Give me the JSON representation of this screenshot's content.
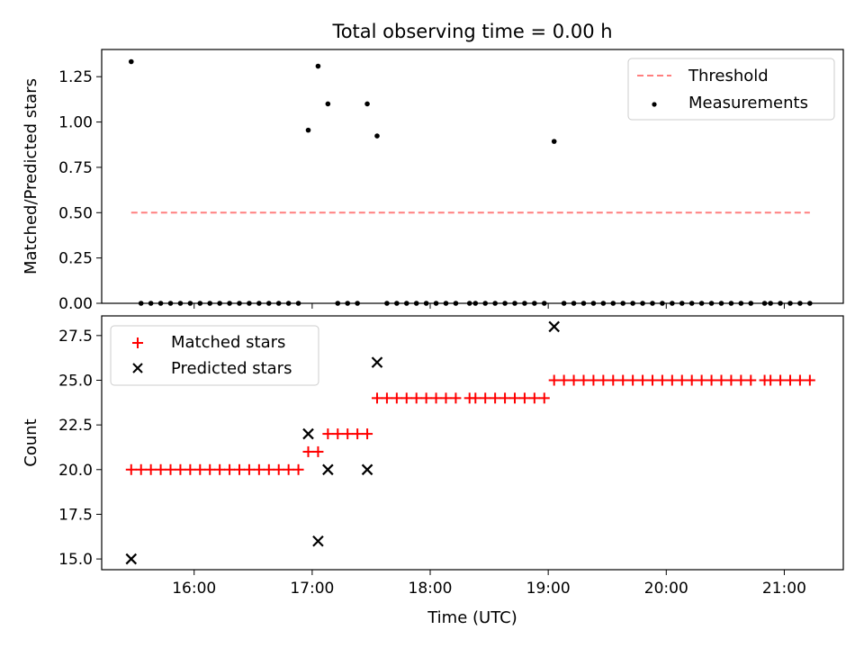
{
  "chart_data": [
    {
      "type": "scatter",
      "title": "Total observing time = 0.00 h",
      "xlabel": "",
      "ylabel": "Matched/Predicted stars",
      "xlim": [
        "15:13",
        "21:30"
      ],
      "ylim": [
        0,
        1.4
      ],
      "yticks": [
        "0.00",
        "0.25",
        "0.50",
        "0.75",
        "1.00",
        "1.25"
      ],
      "xticks": [
        "16:00",
        "17:00",
        "18:00",
        "19:00",
        "20:00",
        "21:00"
      ],
      "legend": {
        "placement": "upper right",
        "entries": [
          "Threshold",
          "Measurements"
        ]
      },
      "threshold": {
        "name": "Threshold",
        "value": 0.5,
        "x_start": "15:28",
        "x_end": "21:13",
        "color": "#ff7f7f",
        "style": "dashed"
      },
      "series": [
        {
          "name": "Measurements",
          "color": "#000000",
          "points": [
            [
              "15:28",
              1.333
            ],
            [
              "15:33",
              0
            ],
            [
              "15:38",
              0
            ],
            [
              "15:43",
              0
            ],
            [
              "15:48",
              0
            ],
            [
              "15:53",
              0
            ],
            [
              "15:58",
              0
            ],
            [
              "16:03",
              0
            ],
            [
              "16:08",
              0
            ],
            [
              "16:13",
              0
            ],
            [
              "16:18",
              0
            ],
            [
              "16:23",
              0
            ],
            [
              "16:28",
              0
            ],
            [
              "16:33",
              0
            ],
            [
              "16:38",
              0
            ],
            [
              "16:43",
              0
            ],
            [
              "16:48",
              0
            ],
            [
              "16:53",
              0
            ],
            [
              "16:58",
              0.955
            ],
            [
              "17:03",
              1.308
            ],
            [
              "17:08",
              1.1
            ],
            [
              "17:13",
              0
            ],
            [
              "17:18",
              0
            ],
            [
              "17:23",
              0
            ],
            [
              "17:28",
              1.1
            ],
            [
              "17:33",
              0.923
            ],
            [
              "17:38",
              0
            ],
            [
              "17:43",
              0
            ],
            [
              "17:48",
              0
            ],
            [
              "17:53",
              0
            ],
            [
              "17:58",
              0
            ],
            [
              "18:03",
              0
            ],
            [
              "18:08",
              0
            ],
            [
              "18:13",
              0
            ],
            [
              "18:20",
              0
            ],
            [
              "18:23",
              0
            ],
            [
              "18:28",
              0
            ],
            [
              "18:33",
              0
            ],
            [
              "18:38",
              0
            ],
            [
              "18:43",
              0
            ],
            [
              "18:48",
              0
            ],
            [
              "18:53",
              0
            ],
            [
              "18:58",
              0
            ],
            [
              "19:03",
              0.893
            ],
            [
              "19:08",
              0
            ],
            [
              "19:13",
              0
            ],
            [
              "19:18",
              0
            ],
            [
              "19:23",
              0
            ],
            [
              "19:28",
              0
            ],
            [
              "19:33",
              0
            ],
            [
              "19:38",
              0
            ],
            [
              "19:43",
              0
            ],
            [
              "19:48",
              0
            ],
            [
              "19:53",
              0
            ],
            [
              "19:58",
              0
            ],
            [
              "20:03",
              0
            ],
            [
              "20:08",
              0
            ],
            [
              "20:13",
              0
            ],
            [
              "20:18",
              0
            ],
            [
              "20:23",
              0
            ],
            [
              "20:28",
              0
            ],
            [
              "20:33",
              0
            ],
            [
              "20:38",
              0
            ],
            [
              "20:43",
              0
            ],
            [
              "20:50",
              0
            ],
            [
              "20:53",
              0
            ],
            [
              "20:58",
              0
            ],
            [
              "21:03",
              0
            ],
            [
              "21:08",
              0
            ],
            [
              "21:13",
              0
            ]
          ]
        }
      ]
    },
    {
      "type": "scatter",
      "title": "",
      "xlabel": "Time (UTC)",
      "ylabel": "Count",
      "xlim": [
        "15:13",
        "21:30"
      ],
      "ylim": [
        14.4,
        28.6
      ],
      "yticks": [
        "15.0",
        "17.5",
        "20.0",
        "22.5",
        "25.0",
        "27.5"
      ],
      "xticks": [
        "16:00",
        "17:00",
        "18:00",
        "19:00",
        "20:00",
        "21:00"
      ],
      "legend": {
        "placement": "upper left",
        "entries": [
          "Matched stars",
          "Predicted stars"
        ]
      },
      "series": [
        {
          "name": "Matched stars",
          "marker": "+",
          "color": "#ff0000",
          "points": [
            [
              "15:28",
              20
            ],
            [
              "15:33",
              20
            ],
            [
              "15:38",
              20
            ],
            [
              "15:43",
              20
            ],
            [
              "15:48",
              20
            ],
            [
              "15:53",
              20
            ],
            [
              "15:58",
              20
            ],
            [
              "16:03",
              20
            ],
            [
              "16:08",
              20
            ],
            [
              "16:13",
              20
            ],
            [
              "16:18",
              20
            ],
            [
              "16:23",
              20
            ],
            [
              "16:28",
              20
            ],
            [
              "16:33",
              20
            ],
            [
              "16:38",
              20
            ],
            [
              "16:43",
              20
            ],
            [
              "16:48",
              20
            ],
            [
              "16:53",
              20
            ],
            [
              "16:58",
              21
            ],
            [
              "17:03",
              21
            ],
            [
              "17:08",
              22
            ],
            [
              "17:13",
              22
            ],
            [
              "17:18",
              22
            ],
            [
              "17:23",
              22
            ],
            [
              "17:28",
              22
            ],
            [
              "17:33",
              24
            ],
            [
              "17:38",
              24
            ],
            [
              "17:43",
              24
            ],
            [
              "17:48",
              24
            ],
            [
              "17:53",
              24
            ],
            [
              "17:58",
              24
            ],
            [
              "18:03",
              24
            ],
            [
              "18:08",
              24
            ],
            [
              "18:13",
              24
            ],
            [
              "18:20",
              24
            ],
            [
              "18:23",
              24
            ],
            [
              "18:28",
              24
            ],
            [
              "18:33",
              24
            ],
            [
              "18:38",
              24
            ],
            [
              "18:43",
              24
            ],
            [
              "18:48",
              24
            ],
            [
              "18:53",
              24
            ],
            [
              "18:58",
              24
            ],
            [
              "19:03",
              25
            ],
            [
              "19:08",
              25
            ],
            [
              "19:13",
              25
            ],
            [
              "19:18",
              25
            ],
            [
              "19:23",
              25
            ],
            [
              "19:28",
              25
            ],
            [
              "19:33",
              25
            ],
            [
              "19:38",
              25
            ],
            [
              "19:43",
              25
            ],
            [
              "19:48",
              25
            ],
            [
              "19:53",
              25
            ],
            [
              "19:58",
              25
            ],
            [
              "20:03",
              25
            ],
            [
              "20:08",
              25
            ],
            [
              "20:13",
              25
            ],
            [
              "20:18",
              25
            ],
            [
              "20:23",
              25
            ],
            [
              "20:28",
              25
            ],
            [
              "20:33",
              25
            ],
            [
              "20:38",
              25
            ],
            [
              "20:43",
              25
            ],
            [
              "20:50",
              25
            ],
            [
              "20:53",
              25
            ],
            [
              "20:58",
              25
            ],
            [
              "21:03",
              25
            ],
            [
              "21:08",
              25
            ],
            [
              "21:13",
              25
            ]
          ]
        },
        {
          "name": "Predicted stars",
          "marker": "x",
          "color": "#000000",
          "points": [
            [
              "15:28",
              15
            ],
            [
              "16:58",
              22
            ],
            [
              "17:03",
              16
            ],
            [
              "17:08",
              20
            ],
            [
              "17:28",
              20
            ],
            [
              "17:33",
              26
            ],
            [
              "19:03",
              28
            ]
          ]
        }
      ]
    }
  ]
}
